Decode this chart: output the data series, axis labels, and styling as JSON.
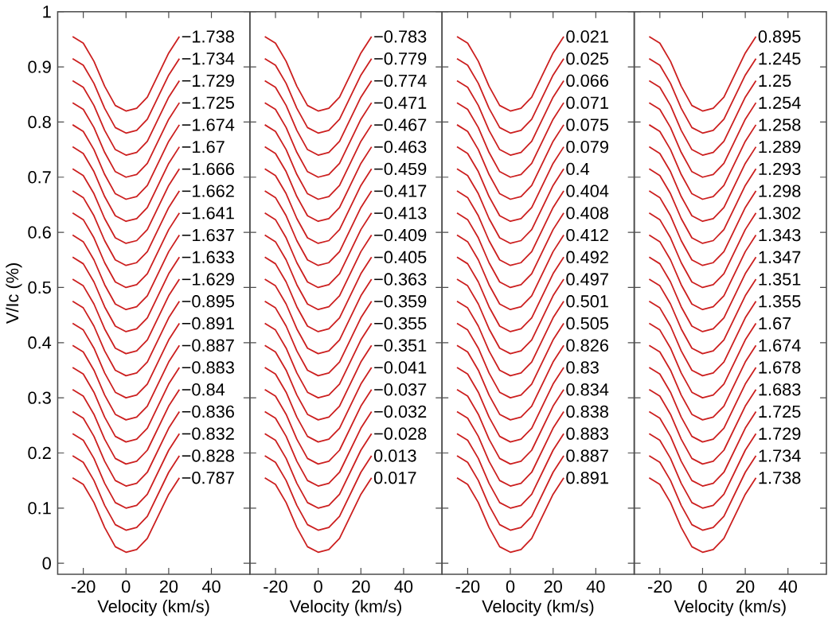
{
  "chart_data": [
    {
      "type": "line",
      "xlabel": "Velocity (km/s)",
      "ylabel": "V/Ic (%)",
      "xlim": [
        -32,
        58
      ],
      "ylim": [
        -0.02,
        1
      ],
      "xticks": [
        -20,
        0,
        20,
        40
      ],
      "yticks": [
        0,
        0.1,
        0.2,
        0.3,
        0.4,
        0.5,
        0.6,
        0.7,
        0.8,
        0.9,
        1
      ],
      "x": [
        -25,
        -20,
        -15,
        -10,
        -5,
        0,
        5,
        10,
        15,
        20,
        25
      ],
      "series": [
        {
          "name": "−1.738",
          "color": "#cc1f1f",
          "values": [
            0.955,
            0.943,
            0.91,
            0.865,
            0.83,
            0.82,
            0.825,
            0.845,
            0.885,
            0.925,
            0.955
          ]
        },
        {
          "name": "−1.734",
          "color": "#cc1f1f",
          "values": [
            0.915,
            0.903,
            0.87,
            0.825,
            0.79,
            0.78,
            0.785,
            0.805,
            0.845,
            0.885,
            0.915
          ]
        },
        {
          "name": "−1.729",
          "color": "#cc1f1f",
          "values": [
            0.875,
            0.863,
            0.83,
            0.785,
            0.75,
            0.74,
            0.745,
            0.765,
            0.805,
            0.845,
            0.875
          ]
        },
        {
          "name": "−1.725",
          "color": "#cc1f1f",
          "values": [
            0.835,
            0.823,
            0.79,
            0.745,
            0.71,
            0.7,
            0.705,
            0.725,
            0.765,
            0.805,
            0.835
          ]
        },
        {
          "name": "−1.674",
          "color": "#cc1f1f",
          "values": [
            0.795,
            0.783,
            0.75,
            0.705,
            0.67,
            0.66,
            0.665,
            0.685,
            0.725,
            0.765,
            0.795
          ]
        },
        {
          "name": "−1.67",
          "color": "#cc1f1f",
          "values": [
            0.755,
            0.743,
            0.71,
            0.665,
            0.63,
            0.62,
            0.625,
            0.645,
            0.685,
            0.725,
            0.755
          ]
        },
        {
          "name": "−1.666",
          "color": "#cc1f1f",
          "values": [
            0.715,
            0.703,
            0.67,
            0.625,
            0.59,
            0.58,
            0.585,
            0.605,
            0.645,
            0.685,
            0.715
          ]
        },
        {
          "name": "−1.662",
          "color": "#cc1f1f",
          "values": [
            0.675,
            0.663,
            0.63,
            0.585,
            0.55,
            0.54,
            0.545,
            0.565,
            0.605,
            0.645,
            0.675
          ]
        },
        {
          "name": "−1.641",
          "color": "#cc1f1f",
          "values": [
            0.635,
            0.623,
            0.59,
            0.545,
            0.51,
            0.5,
            0.505,
            0.525,
            0.565,
            0.605,
            0.635
          ]
        },
        {
          "name": "−1.637",
          "color": "#cc1f1f",
          "values": [
            0.595,
            0.583,
            0.55,
            0.505,
            0.47,
            0.46,
            0.465,
            0.485,
            0.525,
            0.565,
            0.595
          ]
        },
        {
          "name": "−1.633",
          "color": "#cc1f1f",
          "values": [
            0.555,
            0.543,
            0.51,
            0.465,
            0.43,
            0.42,
            0.425,
            0.445,
            0.485,
            0.525,
            0.555
          ]
        },
        {
          "name": "−1.629",
          "color": "#cc1f1f",
          "values": [
            0.515,
            0.503,
            0.47,
            0.425,
            0.39,
            0.38,
            0.385,
            0.405,
            0.445,
            0.485,
            0.515
          ]
        },
        {
          "name": "−0.895",
          "color": "#cc1f1f",
          "values": [
            0.475,
            0.463,
            0.43,
            0.385,
            0.35,
            0.34,
            0.345,
            0.365,
            0.405,
            0.445,
            0.475
          ]
        },
        {
          "name": "−0.891",
          "color": "#cc1f1f",
          "values": [
            0.435,
            0.423,
            0.39,
            0.345,
            0.31,
            0.3,
            0.305,
            0.325,
            0.365,
            0.405,
            0.435
          ]
        },
        {
          "name": "−0.887",
          "color": "#cc1f1f",
          "values": [
            0.395,
            0.383,
            0.35,
            0.305,
            0.27,
            0.26,
            0.265,
            0.285,
            0.325,
            0.365,
            0.395
          ]
        },
        {
          "name": "−0.883",
          "color": "#cc1f1f",
          "values": [
            0.355,
            0.343,
            0.31,
            0.265,
            0.23,
            0.22,
            0.225,
            0.245,
            0.285,
            0.325,
            0.355
          ]
        },
        {
          "name": "−0.84",
          "color": "#cc1f1f",
          "values": [
            0.315,
            0.303,
            0.27,
            0.225,
            0.19,
            0.18,
            0.185,
            0.205,
            0.245,
            0.285,
            0.315
          ]
        },
        {
          "name": "−0.836",
          "color": "#cc1f1f",
          "values": [
            0.275,
            0.263,
            0.23,
            0.185,
            0.15,
            0.14,
            0.145,
            0.165,
            0.205,
            0.245,
            0.275
          ]
        },
        {
          "name": "−0.832",
          "color": "#cc1f1f",
          "values": [
            0.235,
            0.223,
            0.19,
            0.145,
            0.11,
            0.1,
            0.105,
            0.125,
            0.165,
            0.205,
            0.235
          ]
        },
        {
          "name": "−0.828",
          "color": "#cc1f1f",
          "values": [
            0.195,
            0.183,
            0.15,
            0.105,
            0.07,
            0.06,
            0.065,
            0.085,
            0.125,
            0.165,
            0.195
          ]
        },
        {
          "name": "−0.787",
          "color": "#cc1f1f",
          "values": [
            0.155,
            0.143,
            0.11,
            0.065,
            0.03,
            0.02,
            0.025,
            0.045,
            0.085,
            0.125,
            0.155
          ]
        }
      ]
    },
    {
      "type": "line",
      "xlabel": "Velocity (km/s)",
      "xlim": [
        -32,
        58
      ],
      "ylim": [
        -0.02,
        1
      ],
      "xticks": [
        -20,
        0,
        20,
        40
      ],
      "yticks": [
        0,
        0.1,
        0.2,
        0.3,
        0.4,
        0.5,
        0.6,
        0.7,
        0.8,
        0.9,
        1
      ],
      "tick_labels": "x",
      "x": [
        -25,
        -20,
        -15,
        -10,
        -5,
        0,
        5,
        10,
        15,
        20,
        25
      ],
      "series": [
        {
          "name": "−0.783",
          "color": "#cc1f1f",
          "values": [
            0.955,
            0.943,
            0.91,
            0.865,
            0.83,
            0.82,
            0.825,
            0.845,
            0.885,
            0.925,
            0.955
          ]
        },
        {
          "name": "−0.779",
          "color": "#cc1f1f",
          "values": [
            0.915,
            0.903,
            0.87,
            0.825,
            0.79,
            0.78,
            0.785,
            0.805,
            0.845,
            0.885,
            0.915
          ]
        },
        {
          "name": "−0.774",
          "color": "#cc1f1f",
          "values": [
            0.875,
            0.863,
            0.83,
            0.785,
            0.75,
            0.74,
            0.745,
            0.765,
            0.805,
            0.845,
            0.875
          ]
        },
        {
          "name": "−0.471",
          "color": "#cc1f1f",
          "values": [
            0.835,
            0.823,
            0.79,
            0.745,
            0.71,
            0.7,
            0.705,
            0.725,
            0.765,
            0.805,
            0.835
          ]
        },
        {
          "name": "−0.467",
          "color": "#cc1f1f",
          "values": [
            0.795,
            0.783,
            0.75,
            0.705,
            0.67,
            0.66,
            0.665,
            0.685,
            0.725,
            0.765,
            0.795
          ]
        },
        {
          "name": "−0.463",
          "color": "#cc1f1f",
          "values": [
            0.755,
            0.743,
            0.71,
            0.665,
            0.63,
            0.62,
            0.625,
            0.645,
            0.685,
            0.725,
            0.755
          ]
        },
        {
          "name": "−0.459",
          "color": "#cc1f1f",
          "values": [
            0.715,
            0.703,
            0.67,
            0.625,
            0.59,
            0.58,
            0.585,
            0.605,
            0.645,
            0.685,
            0.715
          ]
        },
        {
          "name": "−0.417",
          "color": "#cc1f1f",
          "values": [
            0.675,
            0.663,
            0.63,
            0.585,
            0.55,
            0.54,
            0.545,
            0.565,
            0.605,
            0.645,
            0.675
          ]
        },
        {
          "name": "−0.413",
          "color": "#cc1f1f",
          "values": [
            0.635,
            0.623,
            0.59,
            0.545,
            0.51,
            0.5,
            0.505,
            0.525,
            0.565,
            0.605,
            0.635
          ]
        },
        {
          "name": "−0.409",
          "color": "#cc1f1f",
          "values": [
            0.595,
            0.583,
            0.55,
            0.505,
            0.47,
            0.46,
            0.465,
            0.485,
            0.525,
            0.565,
            0.595
          ]
        },
        {
          "name": "−0.405",
          "color": "#cc1f1f",
          "values": [
            0.555,
            0.543,
            0.51,
            0.465,
            0.43,
            0.42,
            0.425,
            0.445,
            0.485,
            0.525,
            0.555
          ]
        },
        {
          "name": "−0.363",
          "color": "#cc1f1f",
          "values": [
            0.515,
            0.503,
            0.47,
            0.425,
            0.39,
            0.38,
            0.385,
            0.405,
            0.445,
            0.485,
            0.515
          ]
        },
        {
          "name": "−0.359",
          "color": "#cc1f1f",
          "values": [
            0.475,
            0.463,
            0.43,
            0.385,
            0.35,
            0.34,
            0.345,
            0.365,
            0.405,
            0.445,
            0.475
          ]
        },
        {
          "name": "−0.355",
          "color": "#cc1f1f",
          "values": [
            0.435,
            0.423,
            0.39,
            0.345,
            0.31,
            0.3,
            0.305,
            0.325,
            0.365,
            0.405,
            0.435
          ]
        },
        {
          "name": "−0.351",
          "color": "#cc1f1f",
          "values": [
            0.395,
            0.383,
            0.35,
            0.305,
            0.27,
            0.26,
            0.265,
            0.285,
            0.325,
            0.365,
            0.395
          ]
        },
        {
          "name": "−0.041",
          "color": "#cc1f1f",
          "values": [
            0.355,
            0.343,
            0.31,
            0.265,
            0.23,
            0.22,
            0.225,
            0.245,
            0.285,
            0.325,
            0.355
          ]
        },
        {
          "name": "−0.037",
          "color": "#cc1f1f",
          "values": [
            0.315,
            0.303,
            0.27,
            0.225,
            0.19,
            0.18,
            0.185,
            0.205,
            0.245,
            0.285,
            0.315
          ]
        },
        {
          "name": "−0.032",
          "color": "#cc1f1f",
          "values": [
            0.275,
            0.263,
            0.23,
            0.185,
            0.15,
            0.14,
            0.145,
            0.165,
            0.205,
            0.245,
            0.275
          ]
        },
        {
          "name": "−0.028",
          "color": "#cc1f1f",
          "values": [
            0.235,
            0.223,
            0.19,
            0.145,
            0.11,
            0.1,
            0.105,
            0.125,
            0.165,
            0.205,
            0.235
          ]
        },
        {
          "name": "0.013",
          "color": "#cc1f1f",
          "values": [
            0.195,
            0.183,
            0.15,
            0.105,
            0.07,
            0.06,
            0.065,
            0.085,
            0.125,
            0.165,
            0.195
          ]
        },
        {
          "name": "0.017",
          "color": "#cc1f1f",
          "values": [
            0.155,
            0.143,
            0.11,
            0.065,
            0.03,
            0.02,
            0.025,
            0.045,
            0.085,
            0.125,
            0.155
          ]
        }
      ]
    },
    {
      "type": "line",
      "xlabel": "Velocity (km/s)",
      "xlim": [
        -32,
        58
      ],
      "ylim": [
        -0.02,
        1
      ],
      "xticks": [
        -20,
        0,
        20,
        40
      ],
      "yticks": [
        0,
        0.1,
        0.2,
        0.3,
        0.4,
        0.5,
        0.6,
        0.7,
        0.8,
        0.9,
        1
      ],
      "tick_labels": "x",
      "x": [
        -25,
        -20,
        -15,
        -10,
        -5,
        0,
        5,
        10,
        15,
        20,
        25
      ],
      "series": [
        {
          "name": "0.021",
          "color": "#cc1f1f",
          "values": [
            0.955,
            0.943,
            0.91,
            0.865,
            0.83,
            0.82,
            0.825,
            0.845,
            0.885,
            0.925,
            0.955
          ]
        },
        {
          "name": "0.025",
          "color": "#cc1f1f",
          "values": [
            0.915,
            0.903,
            0.87,
            0.825,
            0.79,
            0.78,
            0.785,
            0.805,
            0.845,
            0.885,
            0.915
          ]
        },
        {
          "name": "0.066",
          "color": "#cc1f1f",
          "values": [
            0.875,
            0.863,
            0.83,
            0.785,
            0.75,
            0.74,
            0.745,
            0.765,
            0.805,
            0.845,
            0.875
          ]
        },
        {
          "name": "0.071",
          "color": "#cc1f1f",
          "values": [
            0.835,
            0.823,
            0.79,
            0.745,
            0.71,
            0.7,
            0.705,
            0.725,
            0.765,
            0.805,
            0.835
          ]
        },
        {
          "name": "0.075",
          "color": "#cc1f1f",
          "values": [
            0.795,
            0.783,
            0.75,
            0.705,
            0.67,
            0.66,
            0.665,
            0.685,
            0.725,
            0.765,
            0.795
          ]
        },
        {
          "name": "0.079",
          "color": "#cc1f1f",
          "values": [
            0.755,
            0.743,
            0.71,
            0.665,
            0.63,
            0.62,
            0.625,
            0.645,
            0.685,
            0.725,
            0.755
          ]
        },
        {
          "name": "0.4",
          "color": "#cc1f1f",
          "values": [
            0.715,
            0.703,
            0.67,
            0.625,
            0.59,
            0.58,
            0.585,
            0.605,
            0.645,
            0.685,
            0.715
          ]
        },
        {
          "name": "0.404",
          "color": "#cc1f1f",
          "values": [
            0.675,
            0.663,
            0.63,
            0.585,
            0.55,
            0.54,
            0.545,
            0.565,
            0.605,
            0.645,
            0.675
          ]
        },
        {
          "name": "0.408",
          "color": "#cc1f1f",
          "values": [
            0.635,
            0.623,
            0.59,
            0.545,
            0.51,
            0.5,
            0.505,
            0.525,
            0.565,
            0.605,
            0.635
          ]
        },
        {
          "name": "0.412",
          "color": "#cc1f1f",
          "values": [
            0.595,
            0.583,
            0.55,
            0.505,
            0.47,
            0.46,
            0.465,
            0.485,
            0.525,
            0.565,
            0.595
          ]
        },
        {
          "name": "0.492",
          "color": "#cc1f1f",
          "values": [
            0.555,
            0.543,
            0.51,
            0.465,
            0.43,
            0.42,
            0.425,
            0.445,
            0.485,
            0.525,
            0.555
          ]
        },
        {
          "name": "0.497",
          "color": "#cc1f1f",
          "values": [
            0.515,
            0.503,
            0.47,
            0.425,
            0.39,
            0.38,
            0.385,
            0.405,
            0.445,
            0.485,
            0.515
          ]
        },
        {
          "name": "0.501",
          "color": "#cc1f1f",
          "values": [
            0.475,
            0.463,
            0.43,
            0.385,
            0.35,
            0.34,
            0.345,
            0.365,
            0.405,
            0.445,
            0.475
          ]
        },
        {
          "name": "0.505",
          "color": "#cc1f1f",
          "values": [
            0.435,
            0.423,
            0.39,
            0.345,
            0.31,
            0.3,
            0.305,
            0.325,
            0.365,
            0.405,
            0.435
          ]
        },
        {
          "name": "0.826",
          "color": "#cc1f1f",
          "values": [
            0.395,
            0.383,
            0.35,
            0.305,
            0.27,
            0.26,
            0.265,
            0.285,
            0.325,
            0.365,
            0.395
          ]
        },
        {
          "name": "0.83",
          "color": "#cc1f1f",
          "values": [
            0.355,
            0.343,
            0.31,
            0.265,
            0.23,
            0.22,
            0.225,
            0.245,
            0.285,
            0.325,
            0.355
          ]
        },
        {
          "name": "0.834",
          "color": "#cc1f1f",
          "values": [
            0.315,
            0.303,
            0.27,
            0.225,
            0.19,
            0.18,
            0.185,
            0.205,
            0.245,
            0.285,
            0.315
          ]
        },
        {
          "name": "0.838",
          "color": "#cc1f1f",
          "values": [
            0.275,
            0.263,
            0.23,
            0.185,
            0.15,
            0.14,
            0.145,
            0.165,
            0.205,
            0.245,
            0.275
          ]
        },
        {
          "name": "0.883",
          "color": "#cc1f1f",
          "values": [
            0.235,
            0.223,
            0.19,
            0.145,
            0.11,
            0.1,
            0.105,
            0.125,
            0.165,
            0.205,
            0.235
          ]
        },
        {
          "name": "0.887",
          "color": "#cc1f1f",
          "values": [
            0.195,
            0.183,
            0.15,
            0.105,
            0.07,
            0.06,
            0.065,
            0.085,
            0.125,
            0.165,
            0.195
          ]
        },
        {
          "name": "0.891",
          "color": "#cc1f1f",
          "values": [
            0.155,
            0.143,
            0.11,
            0.065,
            0.03,
            0.02,
            0.025,
            0.045,
            0.085,
            0.125,
            0.155
          ]
        }
      ]
    },
    {
      "type": "line",
      "xlabel": "Velocity (km/s)",
      "xlim": [
        -32,
        58
      ],
      "ylim": [
        -0.02,
        1
      ],
      "xticks": [
        -20,
        0,
        20,
        40
      ],
      "yticks": [
        0,
        0.1,
        0.2,
        0.3,
        0.4,
        0.5,
        0.6,
        0.7,
        0.8,
        0.9,
        1
      ],
      "tick_labels": "x",
      "x": [
        -25,
        -20,
        -15,
        -10,
        -5,
        0,
        5,
        10,
        15,
        20,
        25
      ],
      "series": [
        {
          "name": "0.895",
          "color": "#cc1f1f",
          "values": [
            0.955,
            0.943,
            0.91,
            0.865,
            0.83,
            0.82,
            0.825,
            0.845,
            0.885,
            0.925,
            0.955
          ]
        },
        {
          "name": "1.245",
          "color": "#cc1f1f",
          "values": [
            0.915,
            0.903,
            0.87,
            0.825,
            0.79,
            0.78,
            0.785,
            0.805,
            0.845,
            0.885,
            0.915
          ]
        },
        {
          "name": "1.25",
          "color": "#cc1f1f",
          "values": [
            0.875,
            0.863,
            0.83,
            0.785,
            0.75,
            0.74,
            0.745,
            0.765,
            0.805,
            0.845,
            0.875
          ]
        },
        {
          "name": "1.254",
          "color": "#cc1f1f",
          "values": [
            0.835,
            0.823,
            0.79,
            0.745,
            0.71,
            0.7,
            0.705,
            0.725,
            0.765,
            0.805,
            0.835
          ]
        },
        {
          "name": "1.258",
          "color": "#cc1f1f",
          "values": [
            0.795,
            0.783,
            0.75,
            0.705,
            0.67,
            0.66,
            0.665,
            0.685,
            0.725,
            0.765,
            0.795
          ]
        },
        {
          "name": "1.289",
          "color": "#cc1f1f",
          "values": [
            0.755,
            0.743,
            0.71,
            0.665,
            0.63,
            0.62,
            0.625,
            0.645,
            0.685,
            0.725,
            0.755
          ]
        },
        {
          "name": "1.293",
          "color": "#cc1f1f",
          "values": [
            0.715,
            0.703,
            0.67,
            0.625,
            0.59,
            0.58,
            0.585,
            0.605,
            0.645,
            0.685,
            0.715
          ]
        },
        {
          "name": "1.298",
          "color": "#cc1f1f",
          "values": [
            0.675,
            0.663,
            0.63,
            0.585,
            0.55,
            0.54,
            0.545,
            0.565,
            0.605,
            0.645,
            0.675
          ]
        },
        {
          "name": "1.302",
          "color": "#cc1f1f",
          "values": [
            0.635,
            0.623,
            0.59,
            0.545,
            0.51,
            0.5,
            0.505,
            0.525,
            0.565,
            0.605,
            0.635
          ]
        },
        {
          "name": "1.343",
          "color": "#cc1f1f",
          "values": [
            0.595,
            0.583,
            0.55,
            0.505,
            0.47,
            0.46,
            0.465,
            0.485,
            0.525,
            0.565,
            0.595
          ]
        },
        {
          "name": "1.347",
          "color": "#cc1f1f",
          "values": [
            0.555,
            0.543,
            0.51,
            0.465,
            0.43,
            0.42,
            0.425,
            0.445,
            0.485,
            0.525,
            0.555
          ]
        },
        {
          "name": "1.351",
          "color": "#cc1f1f",
          "values": [
            0.515,
            0.503,
            0.47,
            0.425,
            0.39,
            0.38,
            0.385,
            0.405,
            0.445,
            0.485,
            0.515
          ]
        },
        {
          "name": "1.355",
          "color": "#cc1f1f",
          "values": [
            0.475,
            0.463,
            0.43,
            0.385,
            0.35,
            0.34,
            0.345,
            0.365,
            0.405,
            0.445,
            0.475
          ]
        },
        {
          "name": "1.67",
          "color": "#cc1f1f",
          "values": [
            0.435,
            0.423,
            0.39,
            0.345,
            0.31,
            0.3,
            0.305,
            0.325,
            0.365,
            0.405,
            0.435
          ]
        },
        {
          "name": "1.674",
          "color": "#cc1f1f",
          "values": [
            0.395,
            0.383,
            0.35,
            0.305,
            0.27,
            0.26,
            0.265,
            0.285,
            0.325,
            0.365,
            0.395
          ]
        },
        {
          "name": "1.678",
          "color": "#cc1f1f",
          "values": [
            0.355,
            0.343,
            0.31,
            0.265,
            0.23,
            0.22,
            0.225,
            0.245,
            0.285,
            0.325,
            0.355
          ]
        },
        {
          "name": "1.683",
          "color": "#cc1f1f",
          "values": [
            0.315,
            0.303,
            0.27,
            0.225,
            0.19,
            0.18,
            0.185,
            0.205,
            0.245,
            0.285,
            0.315
          ]
        },
        {
          "name": "1.725",
          "color": "#cc1f1f",
          "values": [
            0.275,
            0.263,
            0.23,
            0.185,
            0.15,
            0.14,
            0.145,
            0.165,
            0.205,
            0.245,
            0.275
          ]
        },
        {
          "name": "1.729",
          "color": "#cc1f1f",
          "values": [
            0.235,
            0.223,
            0.19,
            0.145,
            0.11,
            0.1,
            0.105,
            0.125,
            0.165,
            0.205,
            0.235
          ]
        },
        {
          "name": "1.734",
          "color": "#cc1f1f",
          "values": [
            0.195,
            0.183,
            0.15,
            0.105,
            0.07,
            0.06,
            0.065,
            0.085,
            0.125,
            0.165,
            0.195
          ]
        },
        {
          "name": "1.738",
          "color": "#cc1f1f",
          "values": [
            0.155,
            0.143,
            0.11,
            0.065,
            0.03,
            0.02,
            0.025,
            0.045,
            0.085,
            0.125,
            0.155
          ]
        }
      ]
    }
  ]
}
